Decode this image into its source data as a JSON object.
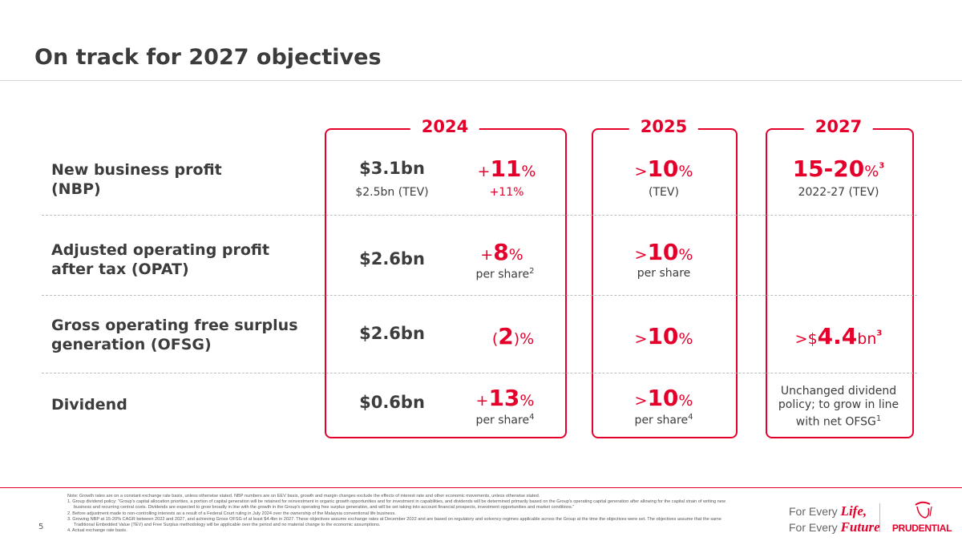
{
  "title": "On track for 2027 objectives",
  "columns": [
    "2024",
    "2025",
    "2027"
  ],
  "rows": [
    {
      "label_l1": "New business profit",
      "label_l2": "(NBP)",
      "y2024_value": "$3.1bn",
      "y2024_sub": "$2.5bn (TEV)",
      "y2024_growth_prefix": "+",
      "y2024_growth": "11",
      "y2024_growth_unit": "%",
      "y2024_growth_sub": "+11%",
      "y2025_prefix": ">",
      "y2025": "10",
      "y2025_unit": "%",
      "y2025_sub": "(TEV)",
      "y2027": "15-20",
      "y2027_unit": "%",
      "y2027_sup": "3",
      "y2027_sub": "2022-27 (TEV)"
    },
    {
      "label_l1": "Adjusted operating profit",
      "label_l2": "after tax (OPAT)",
      "y2024_value": "$2.6bn",
      "y2024_growth_prefix": "+",
      "y2024_growth": "8",
      "y2024_growth_unit": "%",
      "y2024_growth_sub": "per share",
      "y2024_growth_sup": "2",
      "y2025_prefix": ">",
      "y2025": "10",
      "y2025_unit": "%",
      "y2025_sub": "per share"
    },
    {
      "label_l1": "Gross operating free surplus",
      "label_l2": "generation (OFSG)",
      "y2024_value": "$2.6bn",
      "y2024_growth_open": "(",
      "y2024_growth": "2",
      "y2024_growth_unit": ")%",
      "y2025_prefix": ">",
      "y2025": "10",
      "y2025_unit": "%",
      "y2027_prefix": ">$",
      "y2027": "4.4",
      "y2027_unit": "bn",
      "y2027_sup": "3"
    },
    {
      "label_l1": "Dividend",
      "y2024_value": "$0.6bn",
      "y2024_growth_prefix": "+",
      "y2024_growth": "13",
      "y2024_growth_unit": "%",
      "y2024_growth_sub": "per share",
      "y2024_growth_sup": "4",
      "y2025_prefix": ">",
      "y2025": "10",
      "y2025_unit": "%",
      "y2025_sub": "per share",
      "y2025_sup": "4",
      "y2027_text_l1": "Unchanged dividend",
      "y2027_text_l2": "policy; to grow in line",
      "y2027_text_l3": "with net OFSG",
      "y2027_sup": "1"
    }
  ],
  "notes": [
    "Note: Growth rates are on a constant exchange rate basis, unless otherwise stated. NBP numbers are on EEV basis, growth and margin changes exclude the effects of interest rate and other economic movements, unless otherwise stated.",
    "1.  Group dividend policy: \"Group's capital allocation priorities, a portion of capital generation will be retained for reinvestment in organic growth opportunities and for investment in capabilities, and dividends will be determined primarily based on the Group's operating capital generation after allowing for the capital strain of writing new business and recurring central costs. Dividends are expected to grow broadly in line with the growth in the Group's operating free surplus generation, and will be set taking into account financial prospects, investment opportunities and market conditions.\"",
    "2.  Before adjustment made to non-controlling interests as a result of a Federal Court ruling in July 2024 over the ownership of the Malaysia conventional life business.",
    "3.  Growing NBP at 15-20% CAGR between 2022 and 2027, and achieving Gross OFSG of at least $4.4bn in 2027. These objectives assume exchange rates at December 2022 and are based on regulatory and solvency regimes applicable across the Group at the time the objectives were set. The objectives assume that the same Traditional Embedded Value (TEV) and Free Surplus methodology will be applicable over the period and no material change to the economic assumptions.",
    "4.  Actual exchange rate basis."
  ],
  "page_number": "5",
  "tagline": {
    "l1_a": "For Every ",
    "l1_b": "Life,",
    "l2_a": "For Every ",
    "l2_b": "Future"
  },
  "logo": "PRUDENTIAL",
  "colors": {
    "accent": "#e4002b",
    "text": "#3c3c3c"
  }
}
